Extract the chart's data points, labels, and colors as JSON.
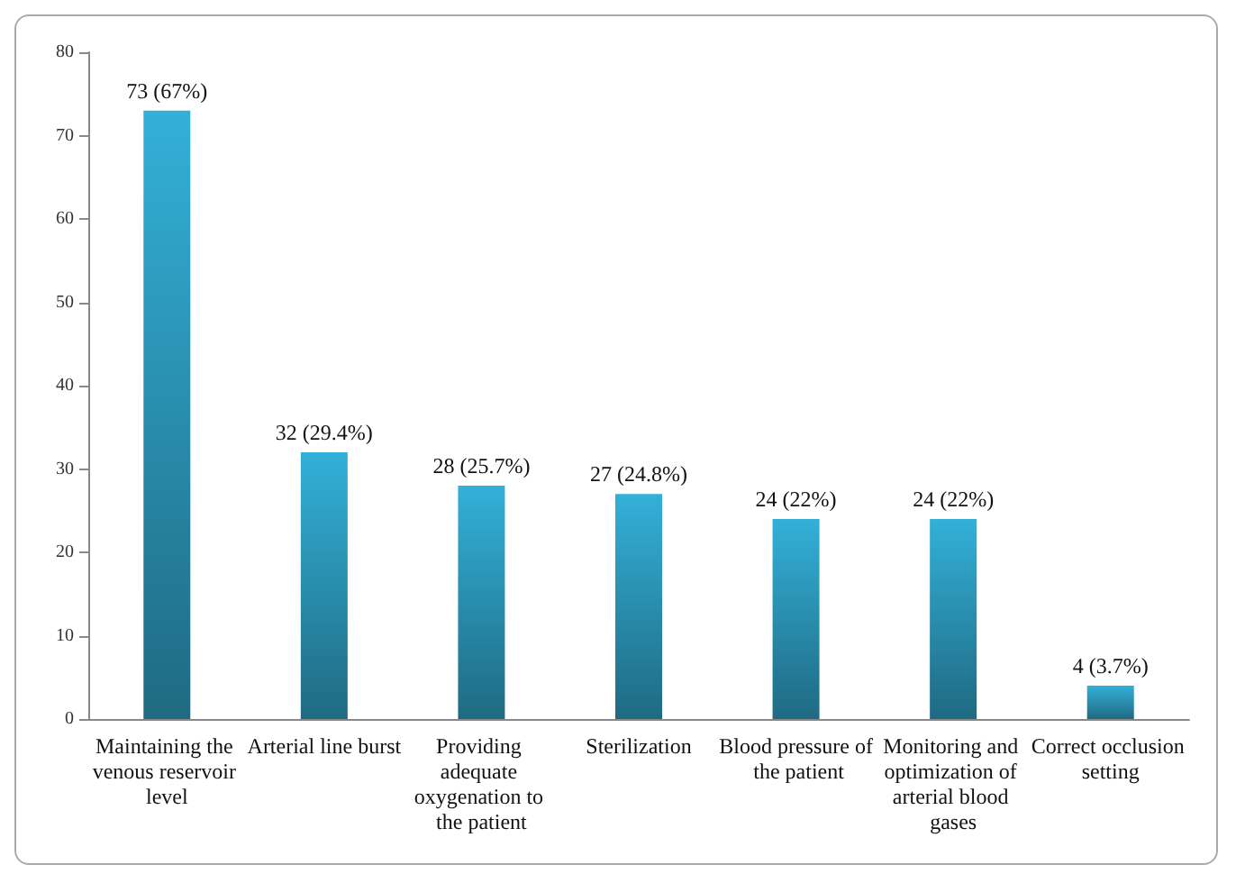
{
  "chart_data": {
    "type": "bar",
    "categories": [
      "Maintaining the venous reservoir level",
      "Arterial line burst",
      "Providing adequate oxygenation to the patient",
      "Sterilization",
      "Blood pressure of the patient",
      "Monitoring and optimization of arterial blood gases",
      "Correct occlusion setting"
    ],
    "values": [
      73,
      32,
      28,
      27,
      24,
      24,
      4
    ],
    "value_labels": [
      "73 (67%)",
      "32 (29.4%)",
      "28 (25.7%)",
      "27 (24.8%)",
      "24 (22%)",
      "24 (22%)",
      "4 (3.7%)"
    ],
    "color": "#33b0d8",
    "ylim": [
      0,
      80
    ],
    "yticks": [
      0,
      10,
      20,
      30,
      40,
      50,
      60,
      70,
      80
    ],
    "grid": false
  }
}
